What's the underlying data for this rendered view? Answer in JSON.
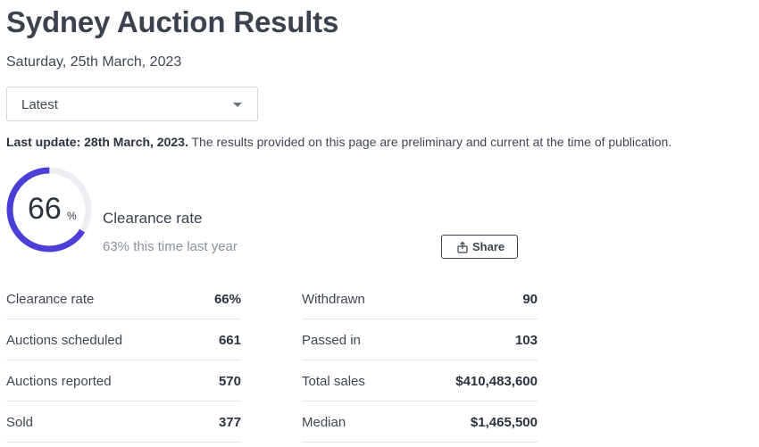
{
  "header": {
    "title": "Sydney Auction Results",
    "date": "Saturday, 25th March, 2023"
  },
  "filter": {
    "selected": "Latest"
  },
  "notice": {
    "bold": "Last update: 28th March, 2023.",
    "text": " The results provided on this page are preliminary and current at the time of publication."
  },
  "summary": {
    "clearance_value": "66",
    "percent_sign": "%",
    "clearance_fraction": 0.66,
    "label": "Clearance rate",
    "last_year": "63% this time last year",
    "share_label": "Share",
    "colors": {
      "gauge_fill": "#4b3fd8",
      "gauge_track": "#eceef1"
    }
  },
  "stats_left": [
    {
      "label": "Clearance rate",
      "value": "66%"
    },
    {
      "label": "Auctions scheduled",
      "value": "661"
    },
    {
      "label": "Auctions reported",
      "value": "570"
    },
    {
      "label": "Sold",
      "value": "377"
    }
  ],
  "stats_right": [
    {
      "label": "Withdrawn",
      "value": "90"
    },
    {
      "label": "Passed in",
      "value": "103"
    },
    {
      "label": "Total sales",
      "value": "$410,483,600"
    },
    {
      "label": "Median",
      "value": "$1,465,500"
    }
  ],
  "icons": {
    "share": "share-icon",
    "dropdown": "chevron-down-icon"
  }
}
